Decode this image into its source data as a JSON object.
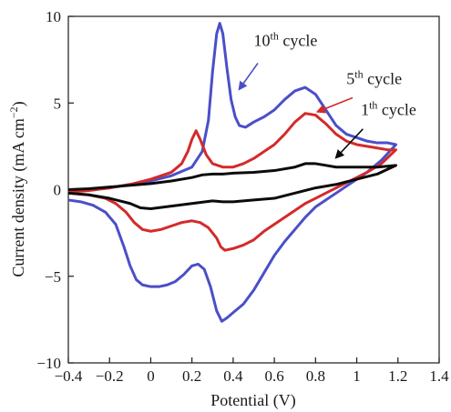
{
  "chart_data": {
    "type": "line",
    "xlabel": "Potential (V)",
    "ylabel": "Current density (mA cm",
    "ylabel_sup": "−2",
    "ylabel_end": ")",
    "xlim": [
      -0.4,
      1.4
    ],
    "ylim": [
      -10,
      10
    ],
    "xticks": [
      -0.4,
      -0.2,
      0,
      0.2,
      0.4,
      0.6,
      0.8,
      1,
      1.2,
      1.4
    ],
    "xtick_labels": [
      "−0.4",
      "−0.2",
      "0",
      "0.2",
      "0.4",
      "0.6",
      "0.8",
      "1",
      "1.2",
      "1.4"
    ],
    "yticks": [
      -10,
      -5,
      0,
      5,
      10
    ],
    "ytick_labels": [
      "−10",
      "−5",
      "0",
      "5",
      "10"
    ],
    "grid": false,
    "series": [
      {
        "name": "10th cycle",
        "color": "#4a4fc8",
        "forward": [
          [
            -0.4,
            -0.1
          ],
          [
            -0.3,
            0.0
          ],
          [
            -0.2,
            0.1
          ],
          [
            -0.1,
            0.3
          ],
          [
            0.0,
            0.5
          ],
          [
            0.1,
            0.8
          ],
          [
            0.2,
            1.3
          ],
          [
            0.25,
            2.2
          ],
          [
            0.28,
            4.0
          ],
          [
            0.3,
            6.8
          ],
          [
            0.32,
            9.0
          ],
          [
            0.335,
            9.6
          ],
          [
            0.35,
            9.0
          ],
          [
            0.37,
            7.0
          ],
          [
            0.39,
            5.2
          ],
          [
            0.41,
            4.2
          ],
          [
            0.43,
            3.7
          ],
          [
            0.46,
            3.6
          ],
          [
            0.5,
            3.9
          ],
          [
            0.55,
            4.2
          ],
          [
            0.6,
            4.6
          ],
          [
            0.65,
            5.2
          ],
          [
            0.7,
            5.7
          ],
          [
            0.75,
            5.9
          ],
          [
            0.8,
            5.5
          ],
          [
            0.85,
            4.6
          ],
          [
            0.9,
            3.7
          ],
          [
            0.95,
            3.2
          ],
          [
            1.0,
            3.0
          ],
          [
            1.05,
            2.8
          ],
          [
            1.1,
            2.7
          ],
          [
            1.15,
            2.7
          ],
          [
            1.19,
            2.6
          ]
        ],
        "backward": [
          [
            1.19,
            2.6
          ],
          [
            1.12,
            1.7
          ],
          [
            1.05,
            1.0
          ],
          [
            1.0,
            0.6
          ],
          [
            0.95,
            0.2
          ],
          [
            0.9,
            -0.2
          ],
          [
            0.85,
            -0.6
          ],
          [
            0.8,
            -1.0
          ],
          [
            0.75,
            -1.6
          ],
          [
            0.7,
            -2.3
          ],
          [
            0.65,
            -3.0
          ],
          [
            0.6,
            -3.8
          ],
          [
            0.55,
            -4.8
          ],
          [
            0.5,
            -5.8
          ],
          [
            0.45,
            -6.6
          ],
          [
            0.4,
            -7.1
          ],
          [
            0.37,
            -7.4
          ],
          [
            0.345,
            -7.6
          ],
          [
            0.32,
            -7.0
          ],
          [
            0.29,
            -5.6
          ],
          [
            0.26,
            -4.6
          ],
          [
            0.23,
            -4.3
          ],
          [
            0.2,
            -4.4
          ],
          [
            0.16,
            -4.9
          ],
          [
            0.12,
            -5.3
          ],
          [
            0.08,
            -5.5
          ],
          [
            0.04,
            -5.6
          ],
          [
            0.0,
            -5.6
          ],
          [
            -0.04,
            -5.5
          ],
          [
            -0.07,
            -5.2
          ],
          [
            -0.1,
            -4.4
          ],
          [
            -0.13,
            -3.3
          ],
          [
            -0.17,
            -2.0
          ],
          [
            -0.22,
            -1.3
          ],
          [
            -0.28,
            -0.9
          ],
          [
            -0.34,
            -0.7
          ],
          [
            -0.4,
            -0.6
          ]
        ]
      },
      {
        "name": "5th cycle",
        "color": "#d42a2a",
        "forward": [
          [
            -0.4,
            -0.15
          ],
          [
            -0.3,
            -0.05
          ],
          [
            -0.2,
            0.1
          ],
          [
            -0.1,
            0.3
          ],
          [
            0.0,
            0.6
          ],
          [
            0.1,
            1.0
          ],
          [
            0.15,
            1.5
          ],
          [
            0.18,
            2.2
          ],
          [
            0.2,
            2.9
          ],
          [
            0.22,
            3.4
          ],
          [
            0.24,
            2.9
          ],
          [
            0.27,
            2.0
          ],
          [
            0.3,
            1.5
          ],
          [
            0.35,
            1.3
          ],
          [
            0.4,
            1.3
          ],
          [
            0.45,
            1.5
          ],
          [
            0.5,
            1.8
          ],
          [
            0.55,
            2.2
          ],
          [
            0.6,
            2.6
          ],
          [
            0.65,
            3.2
          ],
          [
            0.7,
            3.9
          ],
          [
            0.75,
            4.4
          ],
          [
            0.8,
            4.3
          ],
          [
            0.85,
            3.8
          ],
          [
            0.9,
            3.2
          ],
          [
            0.95,
            2.8
          ],
          [
            1.0,
            2.6
          ],
          [
            1.05,
            2.5
          ],
          [
            1.1,
            2.4
          ],
          [
            1.15,
            2.3
          ],
          [
            1.19,
            2.3
          ]
        ],
        "backward": [
          [
            1.19,
            2.3
          ],
          [
            1.12,
            1.5
          ],
          [
            1.05,
            1.0
          ],
          [
            1.0,
            0.7
          ],
          [
            0.95,
            0.4
          ],
          [
            0.9,
            0.1
          ],
          [
            0.85,
            -0.2
          ],
          [
            0.8,
            -0.5
          ],
          [
            0.75,
            -0.8
          ],
          [
            0.7,
            -1.2
          ],
          [
            0.65,
            -1.6
          ],
          [
            0.6,
            -2.0
          ],
          [
            0.55,
            -2.4
          ],
          [
            0.5,
            -2.9
          ],
          [
            0.45,
            -3.2
          ],
          [
            0.4,
            -3.4
          ],
          [
            0.36,
            -3.5
          ],
          [
            0.34,
            -3.3
          ],
          [
            0.32,
            -2.8
          ],
          [
            0.28,
            -2.2
          ],
          [
            0.24,
            -1.9
          ],
          [
            0.2,
            -1.8
          ],
          [
            0.15,
            -1.9
          ],
          [
            0.1,
            -2.1
          ],
          [
            0.05,
            -2.3
          ],
          [
            0.0,
            -2.4
          ],
          [
            -0.04,
            -2.3
          ],
          [
            -0.08,
            -1.9
          ],
          [
            -0.12,
            -1.3
          ],
          [
            -0.17,
            -0.8
          ],
          [
            -0.22,
            -0.5
          ],
          [
            -0.3,
            -0.3
          ],
          [
            -0.4,
            -0.2
          ]
        ]
      },
      {
        "name": "1th cycle",
        "color": "#0b0b0b",
        "forward": [
          [
            -0.4,
            0.0
          ],
          [
            -0.3,
            0.05
          ],
          [
            -0.2,
            0.15
          ],
          [
            -0.1,
            0.25
          ],
          [
            0.0,
            0.35
          ],
          [
            0.1,
            0.5
          ],
          [
            0.2,
            0.7
          ],
          [
            0.25,
            0.85
          ],
          [
            0.3,
            0.9
          ],
          [
            0.35,
            0.9
          ],
          [
            0.4,
            0.95
          ],
          [
            0.5,
            1.0
          ],
          [
            0.6,
            1.1
          ],
          [
            0.7,
            1.3
          ],
          [
            0.75,
            1.5
          ],
          [
            0.8,
            1.5
          ],
          [
            0.85,
            1.4
          ],
          [
            0.9,
            1.3
          ],
          [
            1.0,
            1.3
          ],
          [
            1.1,
            1.3
          ],
          [
            1.19,
            1.4
          ]
        ],
        "backward": [
          [
            1.19,
            1.4
          ],
          [
            1.1,
            0.9
          ],
          [
            1.0,
            0.6
          ],
          [
            0.9,
            0.3
          ],
          [
            0.8,
            0.1
          ],
          [
            0.7,
            -0.2
          ],
          [
            0.6,
            -0.5
          ],
          [
            0.5,
            -0.6
          ],
          [
            0.4,
            -0.7
          ],
          [
            0.35,
            -0.7
          ],
          [
            0.3,
            -0.65
          ],
          [
            0.2,
            -0.8
          ],
          [
            0.1,
            -0.95
          ],
          [
            0.0,
            -1.1
          ],
          [
            -0.05,
            -1.05
          ],
          [
            -0.1,
            -0.8
          ],
          [
            -0.2,
            -0.5
          ],
          [
            -0.3,
            -0.3
          ],
          [
            -0.4,
            -0.2
          ]
        ]
      }
    ],
    "annotations": [
      {
        "base": "10",
        "sup": "th",
        "rest": " cycle",
        "arrow_color": "#4a4fc8",
        "tx": 0.5,
        "ty": 8.3,
        "fx": 0.52,
        "fy": 7.3,
        "ax": 0.43,
        "ay": 5.8
      },
      {
        "base": "5",
        "sup": "th",
        "rest": " cycle",
        "arrow_color": "#d42a2a",
        "tx": 0.95,
        "ty": 6.1,
        "fx": 0.98,
        "fy": 5.3,
        "ax": 0.81,
        "ay": 4.5
      },
      {
        "base": "1",
        "sup": "th",
        "rest": " cycle",
        "arrow_color": "#0b0b0b",
        "tx": 1.02,
        "ty": 4.3,
        "fx": 1.03,
        "fy": 3.5,
        "ax": 0.9,
        "ay": 1.85
      }
    ]
  }
}
